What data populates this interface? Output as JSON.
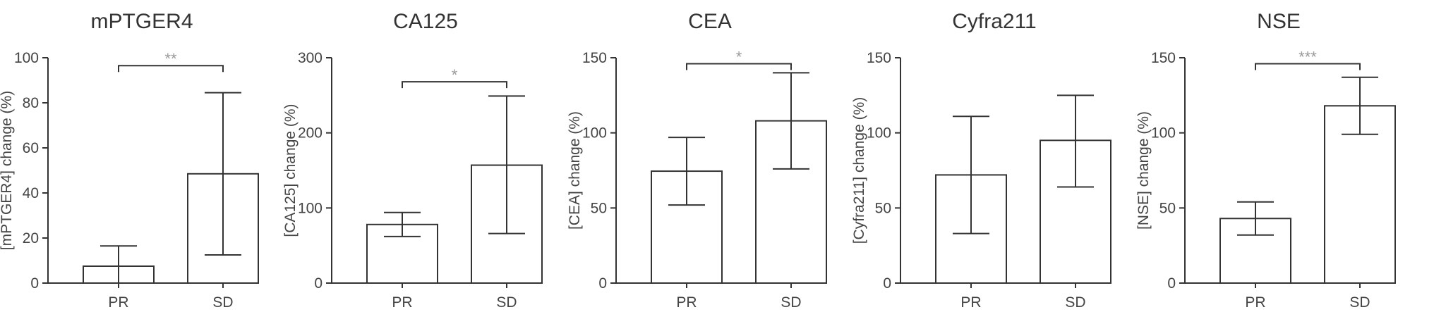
{
  "chart_data": [
    {
      "type": "bar",
      "title": "mPTGER4",
      "ylabel": "[mPTGER4] change (%)",
      "categories": [
        "PR",
        "SD"
      ],
      "values": [
        7.5,
        48.5
      ],
      "error_low": [
        0,
        12.5
      ],
      "error_high": [
        16.5,
        84.5
      ],
      "ylim": [
        0,
        100
      ],
      "yticks": [
        0,
        20,
        40,
        60,
        80,
        100
      ],
      "significance": "**",
      "bracket_y": 96.5
    },
    {
      "type": "bar",
      "title": "CA125",
      "ylabel": "[CA125] change (%)",
      "categories": [
        "PR",
        "SD"
      ],
      "values": [
        78,
        157
      ],
      "error_low": [
        62,
        66
      ],
      "error_high": [
        94,
        249
      ],
      "ylim": [
        0,
        300
      ],
      "yticks": [
        0,
        100,
        200,
        300
      ],
      "significance": "*",
      "bracket_y": 268
    },
    {
      "type": "bar",
      "title": "CEA",
      "ylabel": "[CEA] change (%)",
      "categories": [
        "PR",
        "SD"
      ],
      "values": [
        74.5,
        108
      ],
      "error_low": [
        52,
        76
      ],
      "error_high": [
        97,
        140
      ],
      "ylim": [
        0,
        150
      ],
      "yticks": [
        0,
        50,
        100,
        150
      ],
      "significance": "*",
      "bracket_y": 146
    },
    {
      "type": "bar",
      "title": "Cyfra211",
      "ylabel": "[Cyfra211] change (%)",
      "categories": [
        "PR",
        "SD"
      ],
      "values": [
        72,
        95
      ],
      "error_low": [
        33,
        64
      ],
      "error_high": [
        111,
        125
      ],
      "ylim": [
        0,
        150
      ],
      "yticks": [
        0,
        50,
        100,
        150
      ],
      "significance": "",
      "bracket_y": null
    },
    {
      "type": "bar",
      "title": "NSE",
      "ylabel": "[NSE] change (%)",
      "categories": [
        "PR",
        "SD"
      ],
      "values": [
        43,
        118
      ],
      "error_low": [
        32,
        99
      ],
      "error_high": [
        54,
        137
      ],
      "ylim": [
        0,
        150
      ],
      "yticks": [
        0,
        50,
        100,
        150
      ],
      "significance": "***",
      "bracket_y": 146
    }
  ]
}
